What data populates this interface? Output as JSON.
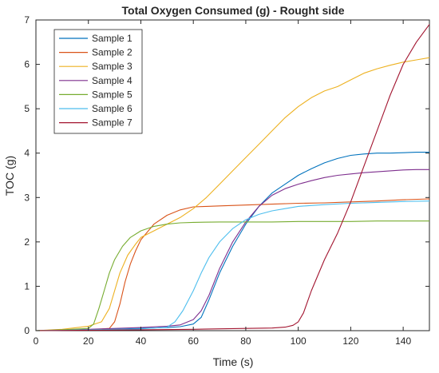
{
  "chart_data": {
    "type": "line",
    "title": "Total Oxygen Consumed (g) - Rought side",
    "xlabel": "Time (s)",
    "ylabel": "TOC (g)",
    "xlim": [
      0,
      150
    ],
    "ylim": [
      0,
      7
    ],
    "xticks": [
      "0",
      "20",
      "40",
      "60",
      "80",
      "100",
      "120",
      "140"
    ],
    "yticks": [
      "0",
      "1",
      "2",
      "3",
      "4",
      "5",
      "6",
      "7"
    ],
    "grid": false,
    "legend": "top-left",
    "series": [
      {
        "name": "Sample 1",
        "color": "#0072BD",
        "x": [
          0,
          20,
          40,
          50,
          55,
          60,
          63,
          66,
          70,
          75,
          80,
          85,
          90,
          95,
          100,
          105,
          110,
          115,
          120,
          125,
          130,
          135,
          140,
          145,
          150
        ],
        "y": [
          0,
          0.02,
          0.05,
          0.07,
          0.09,
          0.15,
          0.3,
          0.7,
          1.3,
          1.9,
          2.4,
          2.8,
          3.1,
          3.3,
          3.5,
          3.65,
          3.78,
          3.88,
          3.95,
          3.98,
          4.0,
          4.0,
          4.01,
          4.02,
          4.02
        ]
      },
      {
        "name": "Sample 2",
        "color": "#D95319",
        "x": [
          0,
          20,
          28,
          30,
          32,
          34,
          36,
          38,
          40,
          45,
          50,
          55,
          60,
          65,
          70,
          80,
          90,
          100,
          110,
          120,
          130,
          140,
          150
        ],
        "y": [
          0,
          0.02,
          0.05,
          0.2,
          0.6,
          1.1,
          1.5,
          1.8,
          2.05,
          2.4,
          2.6,
          2.72,
          2.79,
          2.8,
          2.81,
          2.83,
          2.85,
          2.87,
          2.88,
          2.9,
          2.92,
          2.95,
          2.97
        ]
      },
      {
        "name": "Sample 3",
        "color": "#EDB120",
        "x": [
          0,
          10,
          20,
          25,
          28,
          30,
          32,
          35,
          38,
          40,
          45,
          50,
          55,
          60,
          65,
          70,
          75,
          80,
          85,
          90,
          95,
          100,
          105,
          110,
          115,
          120,
          125,
          130,
          135,
          140,
          145,
          150
        ],
        "y": [
          0,
          0.03,
          0.1,
          0.2,
          0.5,
          0.9,
          1.3,
          1.7,
          1.95,
          2.1,
          2.25,
          2.4,
          2.55,
          2.75,
          3.0,
          3.3,
          3.6,
          3.9,
          4.2,
          4.5,
          4.8,
          5.05,
          5.25,
          5.4,
          5.5,
          5.65,
          5.8,
          5.9,
          5.98,
          6.05,
          6.1,
          6.15
        ]
      },
      {
        "name": "Sample 4",
        "color": "#7E2F8E",
        "x": [
          0,
          20,
          40,
          50,
          55,
          60,
          63,
          66,
          70,
          75,
          80,
          85,
          90,
          95,
          100,
          105,
          110,
          115,
          120,
          125,
          130,
          135,
          140,
          145,
          150
        ],
        "y": [
          0,
          0.03,
          0.07,
          0.1,
          0.13,
          0.25,
          0.45,
          0.8,
          1.4,
          2.0,
          2.45,
          2.8,
          3.05,
          3.2,
          3.3,
          3.38,
          3.45,
          3.5,
          3.53,
          3.56,
          3.58,
          3.6,
          3.62,
          3.63,
          3.63
        ]
      },
      {
        "name": "Sample 5",
        "color": "#77AC30",
        "x": [
          0,
          10,
          20,
          22,
          24,
          26,
          28,
          30,
          33,
          36,
          40,
          45,
          50,
          55,
          60,
          70,
          80,
          90,
          100,
          110,
          120,
          130,
          140,
          150
        ],
        "y": [
          0,
          0.02,
          0.05,
          0.15,
          0.5,
          0.9,
          1.3,
          1.6,
          1.9,
          2.1,
          2.25,
          2.35,
          2.4,
          2.43,
          2.44,
          2.45,
          2.45,
          2.45,
          2.46,
          2.46,
          2.46,
          2.47,
          2.47,
          2.47
        ]
      },
      {
        "name": "Sample 6",
        "color": "#4DBEEE",
        "x": [
          0,
          20,
          40,
          50,
          53,
          56,
          60,
          63,
          66,
          70,
          75,
          80,
          85,
          90,
          95,
          100,
          110,
          120,
          130,
          140,
          150
        ],
        "y": [
          0,
          0.02,
          0.04,
          0.08,
          0.2,
          0.45,
          0.9,
          1.3,
          1.65,
          2.0,
          2.3,
          2.5,
          2.62,
          2.7,
          2.75,
          2.8,
          2.84,
          2.87,
          2.89,
          2.91,
          2.92
        ]
      },
      {
        "name": "Sample 7",
        "color": "#A2142F",
        "x": [
          0,
          20,
          40,
          60,
          80,
          90,
          95,
          98,
          100,
          102,
          105,
          110,
          115,
          120,
          125,
          130,
          135,
          140,
          145,
          150
        ],
        "y": [
          0,
          0.01,
          0.02,
          0.03,
          0.05,
          0.06,
          0.08,
          0.12,
          0.2,
          0.4,
          0.9,
          1.6,
          2.2,
          2.9,
          3.7,
          4.5,
          5.3,
          6.0,
          6.5,
          6.9
        ]
      }
    ]
  }
}
